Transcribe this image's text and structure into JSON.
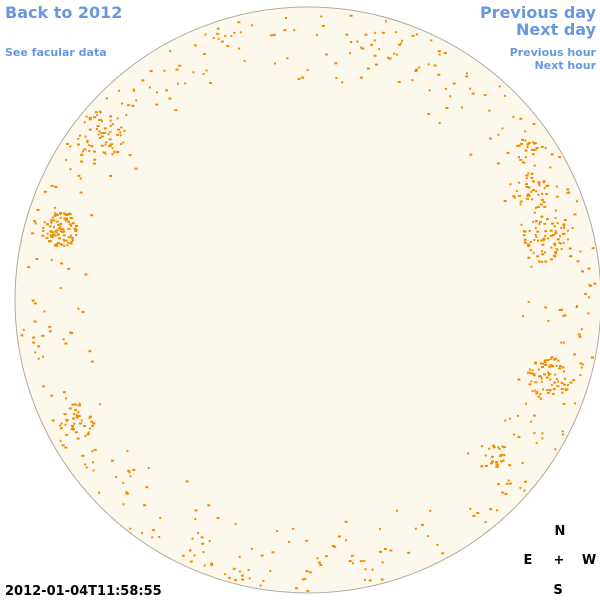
{
  "header": {
    "back_link": "Back to 2012",
    "facular_link": "See facular data",
    "previous_day": "Previous day",
    "next_day": "Next day",
    "previous_hour": "Previous hour",
    "next_hour": "Next hour"
  },
  "timestamp": "2012-01-04T11:58:55",
  "compass": {
    "north": "N",
    "east": "E",
    "center": "+",
    "west": "W",
    "south": "S"
  }
}
